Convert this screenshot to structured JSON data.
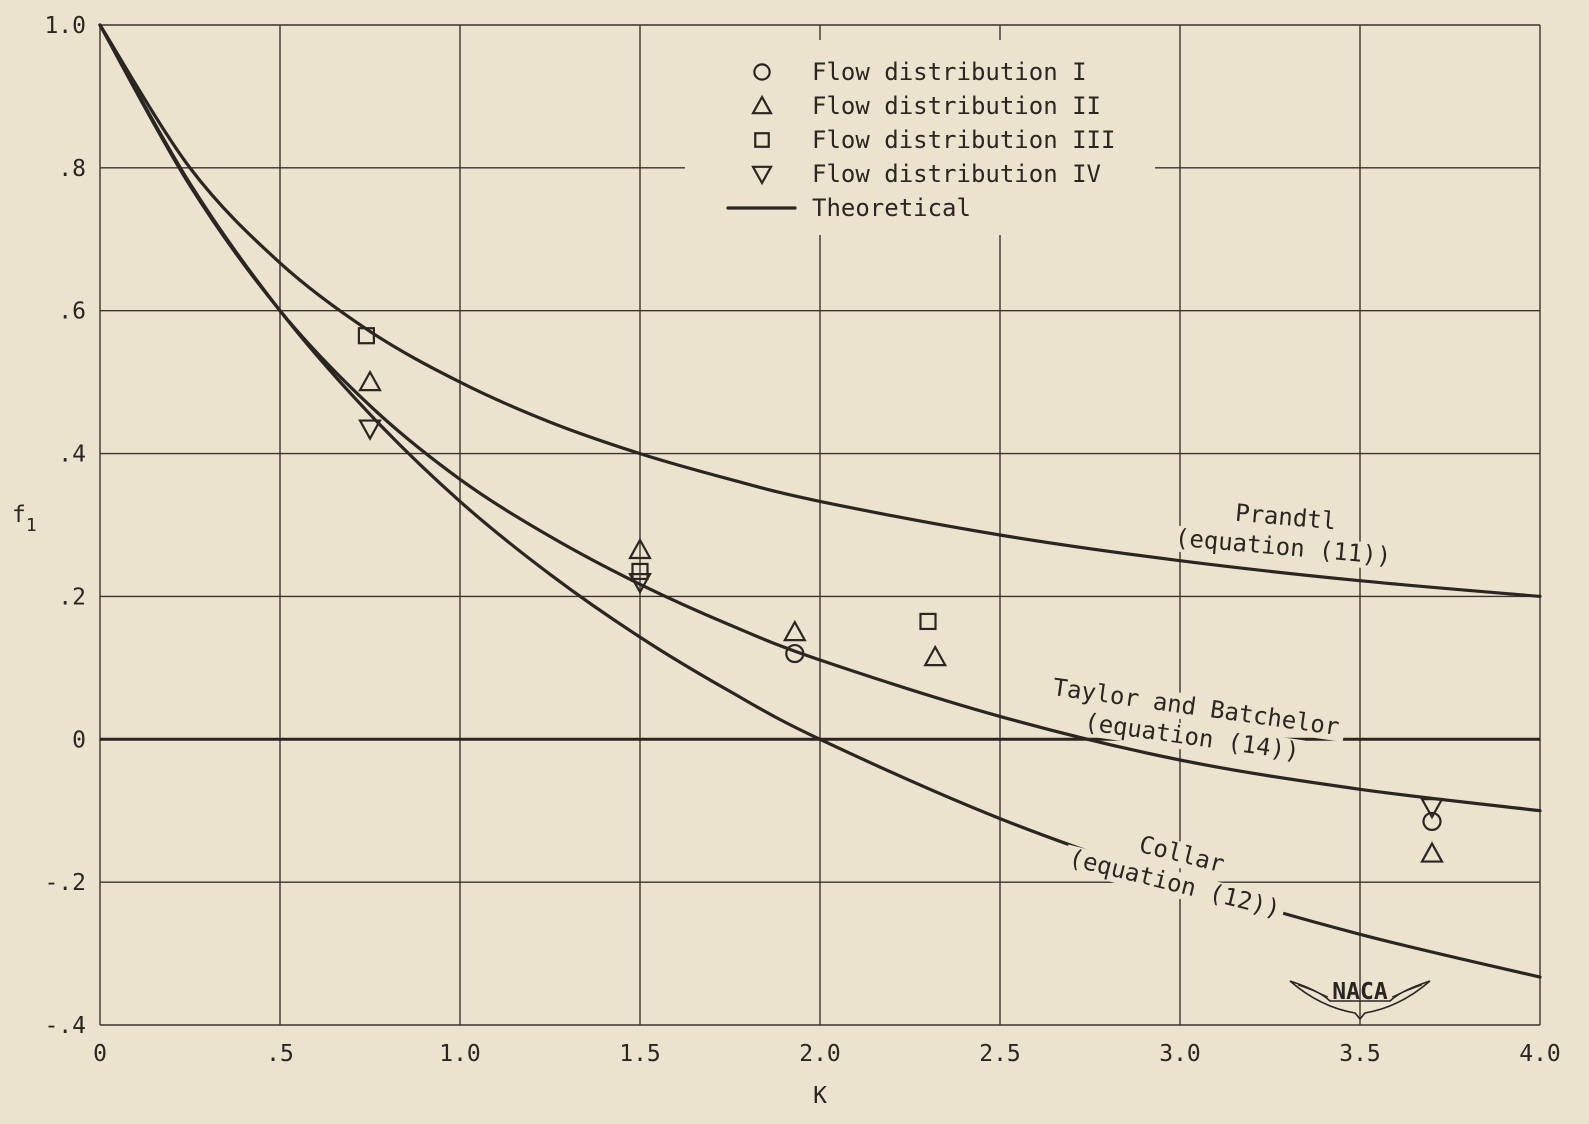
{
  "chart_data": {
    "type": "line",
    "title": "",
    "xlabel": "K",
    "ylabel": "f",
    "ylabel_subscript": "1",
    "xlim": [
      0,
      4.0
    ],
    "ylim": [
      -0.4,
      1.0
    ],
    "grid": true,
    "x_ticks": [
      {
        "value": 0,
        "label": "0"
      },
      {
        "value": 0.5,
        "label": ".5"
      },
      {
        "value": 1.0,
        "label": "1.0"
      },
      {
        "value": 1.5,
        "label": "1.5"
      },
      {
        "value": 2.0,
        "label": "2.0"
      },
      {
        "value": 2.5,
        "label": "2.5"
      },
      {
        "value": 3.0,
        "label": "3.0"
      },
      {
        "value": 3.5,
        "label": "3.5"
      },
      {
        "value": 4.0,
        "label": "4.0"
      }
    ],
    "y_ticks": [
      {
        "value": 1.0,
        "label": "1.0"
      },
      {
        "value": 0.8,
        "label": ".8"
      },
      {
        "value": 0.6,
        "label": ".6"
      },
      {
        "value": 0.4,
        "label": ".4"
      },
      {
        "value": 0.2,
        "label": ".2"
      },
      {
        "value": 0,
        "label": "0"
      },
      {
        "value": -0.2,
        "label": "-.2"
      },
      {
        "value": -0.4,
        "label": "-.4"
      }
    ],
    "legend": {
      "placement": "top-center",
      "entries": [
        {
          "marker": "circle",
          "label": "Flow distribution I"
        },
        {
          "marker": "triangle-up",
          "label": "Flow distribution II"
        },
        {
          "marker": "square",
          "label": "Flow distribution III"
        },
        {
          "marker": "triangle-down",
          "label": "Flow distribution IV"
        },
        {
          "marker": "line",
          "label": "Theoretical"
        }
      ]
    },
    "curves": [
      {
        "id": "prandtl",
        "label_lines": [
          "Prandtl",
          "(equation (11))"
        ],
        "x": [
          0,
          0.25,
          0.5,
          0.75,
          1.0,
          1.25,
          1.5,
          1.75,
          2.0,
          2.5,
          3.0,
          3.5,
          4.0
        ],
        "y": [
          1.0,
          0.8,
          0.667,
          0.571,
          0.5,
          0.444,
          0.4,
          0.364,
          0.333,
          0.286,
          0.25,
          0.222,
          0.2
        ]
      },
      {
        "id": "taylor-batchelor",
        "label_lines": [
          "Taylor and Batchelor",
          "(equation (14))"
        ],
        "x": [
          0,
          0.25,
          0.5,
          0.75,
          1.0,
          1.25,
          1.5,
          1.75,
          2.0,
          2.5,
          3.0,
          3.5,
          4.0
        ],
        "y": [
          1.0,
          0.775,
          0.6,
          0.467,
          0.364,
          0.284,
          0.217,
          0.16,
          0.111,
          0.032,
          -0.029,
          -0.07,
          -0.1
        ]
      },
      {
        "id": "collar",
        "label_lines": [
          "Collar",
          "(equation (12))"
        ],
        "x": [
          0,
          0.25,
          0.5,
          0.75,
          1.0,
          1.25,
          1.5,
          1.75,
          2.0,
          2.5,
          3.0,
          3.5,
          4.0
        ],
        "y": [
          1.0,
          0.778,
          0.6,
          0.455,
          0.333,
          0.231,
          0.143,
          0.067,
          0.0,
          -0.111,
          -0.2,
          -0.273,
          -0.333
        ]
      }
    ],
    "series": [
      {
        "name": "Flow distribution I",
        "marker": "circle",
        "points": [
          {
            "x": 1.93,
            "y": 0.12
          },
          {
            "x": 3.7,
            "y": -0.115
          }
        ]
      },
      {
        "name": "Flow distribution II",
        "marker": "triangle-up",
        "points": [
          {
            "x": 0.75,
            "y": 0.5
          },
          {
            "x": 1.5,
            "y": 0.265
          },
          {
            "x": 1.93,
            "y": 0.15
          },
          {
            "x": 2.32,
            "y": 0.115
          },
          {
            "x": 3.7,
            "y": -0.16
          }
        ]
      },
      {
        "name": "Flow distribution III",
        "marker": "square",
        "points": [
          {
            "x": 0.74,
            "y": 0.565
          },
          {
            "x": 1.5,
            "y": 0.235
          },
          {
            "x": 2.3,
            "y": 0.165
          }
        ]
      },
      {
        "name": "Flow distribution IV",
        "marker": "triangle-down",
        "points": [
          {
            "x": 0.75,
            "y": 0.435
          },
          {
            "x": 1.5,
            "y": 0.22
          },
          {
            "x": 3.7,
            "y": -0.095
          }
        ]
      }
    ],
    "logo": {
      "text": "NACA"
    }
  }
}
